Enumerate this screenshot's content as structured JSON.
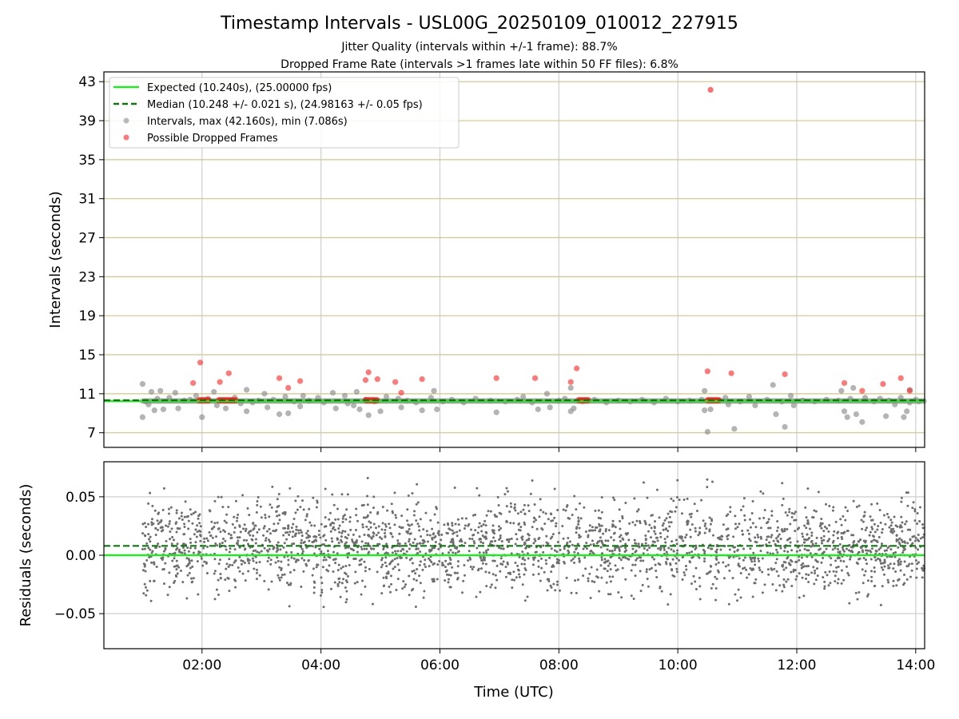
{
  "chart_data": [
    {
      "type": "scatter",
      "title": "Timestamp Intervals - USL00G_20250109_010012_227915",
      "subtitle_lines": [
        "Jitter Quality (intervals within +/-1 frame): 88.7%",
        "Dropped Frame Rate (intervals >1 frames late within 50 FF files): 6.8%"
      ],
      "ylabel": "Intervals (seconds)",
      "xlim_hours": [
        0.35,
        14.15
      ],
      "ylim": [
        5.5,
        44.0
      ],
      "yticks": [
        7,
        11,
        15,
        19,
        23,
        27,
        31,
        35,
        39,
        43
      ],
      "grid": true,
      "legend_position": "upper-left",
      "reference_lines": {
        "expected": {
          "label": "Expected (10.240s), (25.00000 fps)",
          "value": 10.24,
          "color": "#22e822"
        },
        "median": {
          "label": "Median (10.248 +/- 0.021 s), (24.98163 +/- 0.05 fps)",
          "value": 10.248,
          "color": "#0a7a0a"
        }
      },
      "series": [
        {
          "name": "Intervals, max (42.160s), min (7.086s)",
          "color": "#8c8c8c",
          "points": [
            [
              1.0,
              12.0
            ],
            [
              1.0,
              8.6
            ],
            [
              1.05,
              10.2
            ],
            [
              1.1,
              9.9
            ],
            [
              1.15,
              11.2
            ],
            [
              1.2,
              9.3
            ],
            [
              1.25,
              10.5
            ],
            [
              1.3,
              11.3
            ],
            [
              1.35,
              9.4
            ],
            [
              1.45,
              10.6
            ],
            [
              1.55,
              11.1
            ],
            [
              1.6,
              9.5
            ],
            [
              1.7,
              10.3
            ],
            [
              1.8,
              10.4
            ],
            [
              1.9,
              10.8
            ],
            [
              2.0,
              8.6
            ],
            [
              2.1,
              10.5
            ],
            [
              2.2,
              11.2
            ],
            [
              2.25,
              9.8
            ],
            [
              2.4,
              9.5
            ],
            [
              2.55,
              10.6
            ],
            [
              2.65,
              10.0
            ],
            [
              2.75,
              11.4
            ],
            [
              2.75,
              9.2
            ],
            [
              2.85,
              10.1
            ],
            [
              2.95,
              10.3
            ],
            [
              3.05,
              11.0
            ],
            [
              3.1,
              9.6
            ],
            [
              3.2,
              10.4
            ],
            [
              3.3,
              8.9
            ],
            [
              3.4,
              10.7
            ],
            [
              3.45,
              9.0
            ],
            [
              3.55,
              10.2
            ],
            [
              3.65,
              9.7
            ],
            [
              3.7,
              10.8
            ],
            [
              3.8,
              10.3
            ],
            [
              3.95,
              10.6
            ],
            [
              4.05,
              10.1
            ],
            [
              4.2,
              11.1
            ],
            [
              4.25,
              9.5
            ],
            [
              4.4,
              10.8
            ],
            [
              4.45,
              10.0
            ],
            [
              4.55,
              9.8
            ],
            [
              4.6,
              11.2
            ],
            [
              4.65,
              9.4
            ],
            [
              4.75,
              10.4
            ],
            [
              4.8,
              8.8
            ],
            [
              4.9,
              10.2
            ],
            [
              5.0,
              9.2
            ],
            [
              5.1,
              10.7
            ],
            [
              5.3,
              10.5
            ],
            [
              5.35,
              9.6
            ],
            [
              5.45,
              10.3
            ],
            [
              5.6,
              10.1
            ],
            [
              5.7,
              9.3
            ],
            [
              5.85,
              10.6
            ],
            [
              5.9,
              11.3
            ],
            [
              5.95,
              9.4
            ],
            [
              6.05,
              10.2
            ],
            [
              6.2,
              10.4
            ],
            [
              6.4,
              10.1
            ],
            [
              6.6,
              10.5
            ],
            [
              6.85,
              10.3
            ],
            [
              6.95,
              9.1
            ],
            [
              7.1,
              10.2
            ],
            [
              7.3,
              10.4
            ],
            [
              7.4,
              10.7
            ],
            [
              7.55,
              10.1
            ],
            [
              7.65,
              9.4
            ],
            [
              7.8,
              11.0
            ],
            [
              7.85,
              9.6
            ],
            [
              8.0,
              10.3
            ],
            [
              8.1,
              10.5
            ],
            [
              8.2,
              11.6
            ],
            [
              8.2,
              9.2
            ],
            [
              8.25,
              9.5
            ],
            [
              8.4,
              10.2
            ],
            [
              8.6,
              10.4
            ],
            [
              8.8,
              10.1
            ],
            [
              9.0,
              10.3
            ],
            [
              9.2,
              10.2
            ],
            [
              9.4,
              10.4
            ],
            [
              9.6,
              10.1
            ],
            [
              9.8,
              10.5
            ],
            [
              10.0,
              10.2
            ],
            [
              10.2,
              10.3
            ],
            [
              10.4,
              10.4
            ],
            [
              10.45,
              11.3
            ],
            [
              10.45,
              9.3
            ],
            [
              10.5,
              7.1
            ],
            [
              10.55,
              9.4
            ],
            [
              10.8,
              10.6
            ],
            [
              10.85,
              9.9
            ],
            [
              10.95,
              7.4
            ],
            [
              11.05,
              10.2
            ],
            [
              11.2,
              10.7
            ],
            [
              11.3,
              9.8
            ],
            [
              11.5,
              10.4
            ],
            [
              11.6,
              11.9
            ],
            [
              11.65,
              8.9
            ],
            [
              11.75,
              10.2
            ],
            [
              11.8,
              7.6
            ],
            [
              11.9,
              10.8
            ],
            [
              11.95,
              9.8
            ],
            [
              12.1,
              10.3
            ],
            [
              12.3,
              10.2
            ],
            [
              12.5,
              10.4
            ],
            [
              12.7,
              10.3
            ],
            [
              12.75,
              11.3
            ],
            [
              12.8,
              9.2
            ],
            [
              12.85,
              8.6
            ],
            [
              12.9,
              10.5
            ],
            [
              12.95,
              11.6
            ],
            [
              13.0,
              8.9
            ],
            [
              13.1,
              8.1
            ],
            [
              13.15,
              10.6
            ],
            [
              13.3,
              10.2
            ],
            [
              13.4,
              10.5
            ],
            [
              13.5,
              8.7
            ],
            [
              13.55,
              10.3
            ],
            [
              13.65,
              9.9
            ],
            [
              13.75,
              10.6
            ],
            [
              13.8,
              8.6
            ],
            [
              13.85,
              9.2
            ],
            [
              13.9,
              11.4
            ],
            [
              13.9,
              10.1
            ],
            [
              14.0,
              10.4
            ],
            [
              14.05,
              10.2
            ]
          ]
        },
        {
          "name": "Possible Dropped Frames",
          "color": "#ff2020",
          "points": [
            [
              1.85,
              12.1
            ],
            [
              1.97,
              14.2
            ],
            [
              2.3,
              12.2
            ],
            [
              2.45,
              13.1
            ],
            [
              3.3,
              12.6
            ],
            [
              3.45,
              11.6
            ],
            [
              3.65,
              12.3
            ],
            [
              4.75,
              12.4
            ],
            [
              4.8,
              13.2
            ],
            [
              4.95,
              12.5
            ],
            [
              5.25,
              12.2
            ],
            [
              5.35,
              11.1
            ],
            [
              5.7,
              12.5
            ],
            [
              6.95,
              12.6
            ],
            [
              7.6,
              12.6
            ],
            [
              8.2,
              12.2
            ],
            [
              8.3,
              13.6
            ],
            [
              10.5,
              13.3
            ],
            [
              10.9,
              13.1
            ],
            [
              11.8,
              13.0
            ],
            [
              12.8,
              12.1
            ],
            [
              13.1,
              11.3
            ],
            [
              13.45,
              12.0
            ],
            [
              13.75,
              12.6
            ],
            [
              13.9,
              11.3
            ]
          ],
          "clusters": [
            [
              1.95,
              2.12,
              10.33
            ],
            [
              2.28,
              2.58,
              10.33
            ],
            [
              4.75,
              4.95,
              10.33
            ],
            [
              8.33,
              8.5,
              10.33
            ],
            [
              10.5,
              10.7,
              10.33
            ]
          ]
        }
      ]
    },
    {
      "type": "scatter",
      "xlabel": "Time (UTC)",
      "ylabel": "Residuals (seconds)",
      "xlim_hours": [
        0.35,
        14.15
      ],
      "ylim": [
        -0.08,
        0.08
      ],
      "yticks": [
        -0.05,
        0.0,
        0.05
      ],
      "ytick_labels": [
        "−0.05",
        "0.00",
        "0.05"
      ],
      "xticks_hours": [
        2,
        4,
        6,
        8,
        10,
        12,
        14
      ],
      "xtick_labels": [
        "02:00",
        "04:00",
        "06:00",
        "08:00",
        "10:00",
        "12:00",
        "14:00"
      ],
      "grid": true,
      "reference_lines": {
        "expected": {
          "value": 0.0,
          "color": "#22e822"
        },
        "median": {
          "value": 0.008,
          "color": "#0a7a0a"
        }
      },
      "series": [
        {
          "name": "Residuals",
          "color": "#6e6e6e",
          "count": 2600,
          "x_range_hours": [
            1.0,
            14.15
          ],
          "spread_seconds": 0.022,
          "center_seconds": 0.008
        }
      ]
    }
  ]
}
